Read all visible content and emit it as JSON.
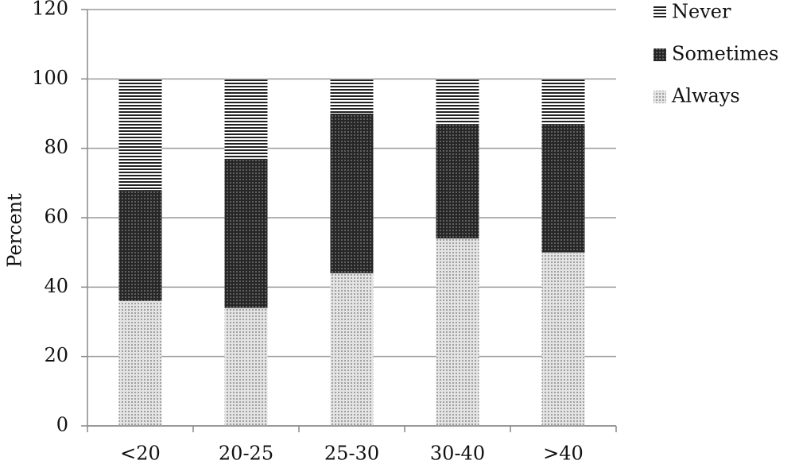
{
  "chart_data": {
    "type": "stacked-bar",
    "y_label": "Percent",
    "categories": [
      "<20",
      "20-25",
      "25-30",
      "30-40",
      ">40"
    ],
    "series": [
      {
        "name": "Always",
        "color": "#c4c4c4",
        "pattern": "dots",
        "values": [
          36,
          34,
          44,
          54,
          50
        ]
      },
      {
        "name": "Sometimes",
        "color": "#2e2e2e",
        "pattern": "dots",
        "values": [
          32,
          43,
          46,
          33,
          37
        ]
      },
      {
        "name": "Never",
        "color": "#2e2e2e",
        "pattern": "stripes",
        "values": [
          32,
          23,
          10,
          13,
          13
        ]
      }
    ],
    "ylim": [
      0,
      120
    ],
    "yticks": [
      0,
      20,
      40,
      60,
      80,
      100,
      120
    ],
    "grid": true,
    "legend": "top-right"
  }
}
